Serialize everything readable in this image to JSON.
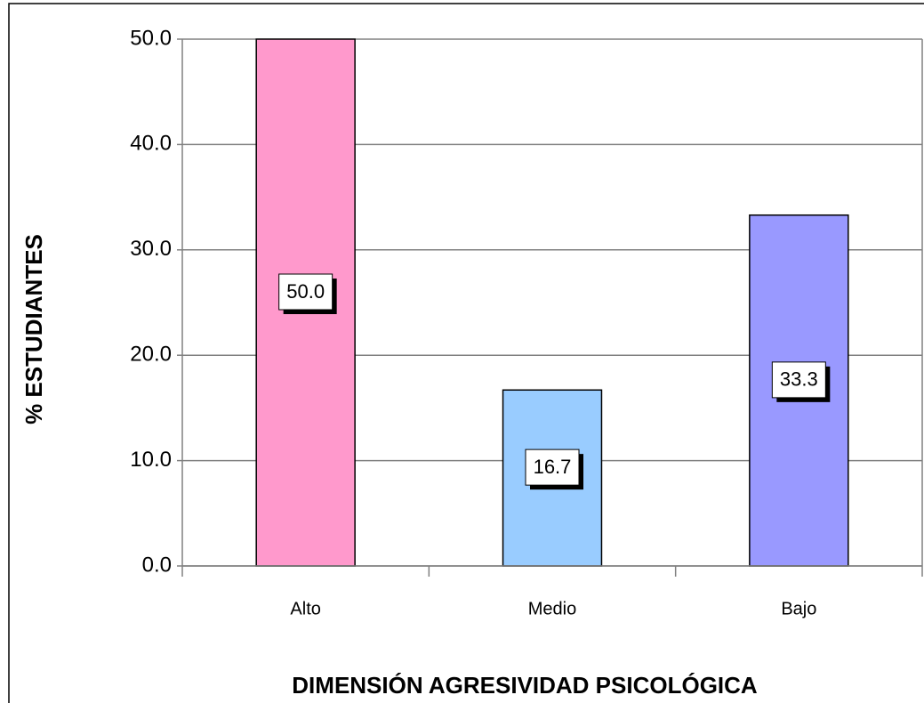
{
  "chart_data": {
    "type": "bar",
    "x_label": "DIMENSIÓN AGRESIVIDAD PSICOLÓGICA",
    "y_label": "% ESTUDIANTES",
    "categories": [
      "Alto",
      "Medio",
      "Bajo"
    ],
    "values": [
      50,
      16.7,
      33.3
    ],
    "value_labels": [
      "50.0",
      "16.7",
      "33.3"
    ],
    "colors": [
      "#ff99cc",
      "#99ccff",
      "#9999ff"
    ],
    "ylim": [
      0,
      50
    ],
    "yticks": [
      {
        "value": 0,
        "label": "0.0"
      },
      {
        "value": 10,
        "label": "10.0"
      },
      {
        "value": 20,
        "label": "20.0"
      },
      {
        "value": 30,
        "label": "30.0"
      },
      {
        "value": 40,
        "label": "40.0"
      },
      {
        "value": 50,
        "label": "50.0"
      }
    ],
    "grid": true
  }
}
